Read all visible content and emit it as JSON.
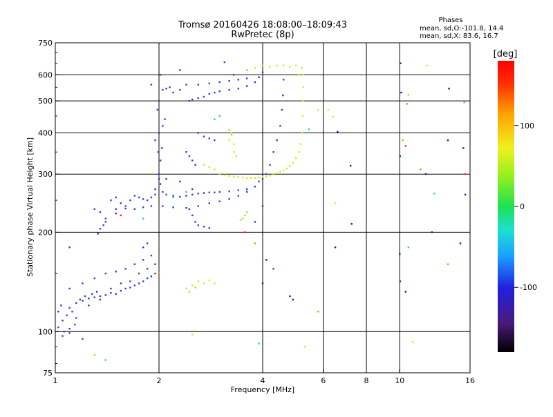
{
  "header": {
    "title_line1": "Tromsø 20160426 18:08:00–18:09:43",
    "title_line2": "RwPretec (8p)",
    "stats_title": "Phases",
    "stats_line1": "mean, sd,O:-101.8, 14.4",
    "stats_line2": "mean, sd,X:  83.6, 16.7"
  },
  "chart_data": {
    "type": "scatter",
    "xlabel": "Frequency [MHz]",
    "ylabel": "Stationary phase Virtual Height [km]",
    "x_scale": "log",
    "y_scale": "log",
    "xlim": [
      1,
      16
    ],
    "ylim": [
      75,
      750
    ],
    "x_ticks": [
      {
        "value": 1,
        "label": "1"
      },
      {
        "value": 2,
        "label": "2"
      },
      {
        "value": 4,
        "label": "4"
      },
      {
        "value": 6,
        "label": "6"
      },
      {
        "value": 8,
        "label": "8"
      },
      {
        "value": 10,
        "label": "10"
      },
      {
        "value": 16,
        "label": "16"
      }
    ],
    "y_ticks": [
      {
        "value": 75,
        "label": "75"
      },
      {
        "value": 100,
        "label": "100"
      },
      {
        "value": 200,
        "label": "200"
      },
      {
        "value": 300,
        "label": "300"
      },
      {
        "value": 400,
        "label": "400"
      },
      {
        "value": 500,
        "label": "500"
      },
      {
        "value": 600,
        "label": "600"
      },
      {
        "value": 750,
        "label": "750"
      }
    ],
    "x_gridlines": [
      2,
      4,
      6,
      8,
      10
    ],
    "y_gridlines": [
      100,
      200,
      300,
      400,
      500,
      600
    ],
    "colorbar": {
      "label": "[deg]",
      "range": [
        -180,
        180
      ],
      "ticks": [
        {
          "value": 100,
          "label": "100"
        },
        {
          "value": 0,
          "label": "0"
        },
        {
          "value": -100,
          "label": "-100"
        }
      ]
    },
    "color_scale": {
      "min": -180,
      "max": 180
    },
    "series": [
      {
        "color": "#2a3be0",
        "points": [
          [
            1.05,
            108
          ],
          [
            1.08,
            112
          ],
          [
            1.1,
            118
          ],
          [
            1.12,
            115
          ],
          [
            1.15,
            122
          ],
          [
            1.18,
            125
          ],
          [
            1.2,
            124
          ],
          [
            1.22,
            128
          ],
          [
            1.25,
            126
          ],
          [
            1.28,
            130
          ],
          [
            1.3,
            127
          ],
          [
            1.32,
            132
          ],
          [
            1.35,
            128
          ],
          [
            1.4,
            129
          ],
          [
            1.45,
            131
          ],
          [
            1.5,
            130
          ],
          [
            1.55,
            133
          ],
          [
            1.6,
            135
          ],
          [
            1.65,
            136
          ],
          [
            1.7,
            138
          ],
          [
            1.75,
            140
          ],
          [
            1.8,
            142
          ],
          [
            1.85,
            145
          ],
          [
            1.9,
            147
          ],
          [
            1.95,
            150
          ],
          [
            1.1,
            135
          ],
          [
            1.2,
            140
          ],
          [
            1.3,
            145
          ],
          [
            1.4,
            150
          ],
          [
            1.5,
            152
          ],
          [
            1.6,
            155
          ],
          [
            1.7,
            160
          ],
          [
            1.8,
            165
          ],
          [
            1.9,
            170
          ],
          [
            1.06,
            100
          ],
          [
            1.1,
            102
          ],
          [
            1.14,
            105
          ],
          [
            1.02,
            115
          ],
          [
            1.04,
            120
          ],
          [
            1.3,
            235
          ],
          [
            1.35,
            230
          ],
          [
            1.4,
            215
          ],
          [
            1.35,
            205
          ],
          [
            1.33,
            198
          ],
          [
            1.38,
            210
          ],
          [
            1.45,
            250
          ],
          [
            1.5,
            255
          ],
          [
            1.55,
            245
          ],
          [
            1.6,
            240
          ],
          [
            1.65,
            250
          ],
          [
            1.7,
            258
          ],
          [
            1.75,
            255
          ],
          [
            1.8,
            252
          ],
          [
            1.85,
            250
          ],
          [
            1.9,
            255
          ],
          [
            1.95,
            260
          ],
          [
            1.5,
            235
          ],
          [
            1.6,
            236
          ],
          [
            1.7,
            235
          ],
          [
            1.8,
            238
          ],
          [
            1.9,
            240
          ],
          [
            1.95,
            270
          ],
          [
            2.0,
            300
          ],
          [
            2.02,
            330
          ],
          [
            2.04,
            360
          ],
          [
            2.0,
            400
          ],
          [
            1.95,
            380
          ],
          [
            2.05,
            420
          ],
          [
            2.08,
            440
          ],
          [
            1.98,
            470
          ],
          [
            1.99,
            350
          ],
          [
            2.0,
            290
          ],
          [
            2.02,
            280
          ],
          [
            2.05,
            265
          ],
          [
            2.1,
            260
          ],
          [
            2.2,
            258
          ],
          [
            2.3,
            256
          ],
          [
            2.4,
            258
          ],
          [
            2.5,
            260
          ],
          [
            2.6,
            262
          ],
          [
            2.7,
            263
          ],
          [
            2.8,
            264
          ],
          [
            2.9,
            264
          ],
          [
            3.0,
            265
          ],
          [
            3.2,
            266
          ],
          [
            3.4,
            268
          ],
          [
            3.6,
            270
          ],
          [
            3.8,
            275
          ],
          [
            3.9,
            285
          ],
          [
            2.05,
            240
          ],
          [
            2.2,
            238
          ],
          [
            2.4,
            237
          ],
          [
            2.6,
            240
          ],
          [
            2.8,
            245
          ],
          [
            3.0,
            248
          ],
          [
            3.2,
            252
          ],
          [
            3.4,
            258
          ],
          [
            3.6,
            265
          ],
          [
            3.8,
            275
          ],
          [
            4.0,
            290
          ],
          [
            4.1,
            300
          ],
          [
            4.2,
            320
          ],
          [
            4.3,
            350
          ],
          [
            4.4,
            380
          ],
          [
            4.5,
            420
          ],
          [
            4.55,
            470
          ],
          [
            4.58,
            520
          ],
          [
            4.6,
            580
          ],
          [
            2.45,
            235
          ],
          [
            2.5,
            225
          ],
          [
            2.55,
            215
          ],
          [
            2.6,
            210
          ],
          [
            2.7,
            208
          ],
          [
            2.8,
            206
          ],
          [
            2.05,
            540
          ],
          [
            2.1,
            545
          ],
          [
            2.15,
            550
          ],
          [
            2.02,
            600
          ],
          [
            2.2,
            530
          ],
          [
            2.3,
            540
          ],
          [
            2.4,
            560
          ],
          [
            2.45,
            500
          ],
          [
            2.5,
            505
          ],
          [
            2.6,
            510
          ],
          [
            2.7,
            515
          ],
          [
            2.8,
            525
          ],
          [
            2.9,
            530
          ],
          [
            3.0,
            535
          ],
          [
            3.2,
            540
          ],
          [
            3.4,
            545
          ],
          [
            3.6,
            555
          ],
          [
            3.8,
            570
          ],
          [
            3.9,
            590
          ],
          [
            4.0,
            610
          ],
          [
            2.6,
            560
          ],
          [
            2.8,
            565
          ],
          [
            3.0,
            570
          ],
          [
            3.2,
            575
          ],
          [
            3.4,
            580
          ],
          [
            3.6,
            585
          ],
          [
            2.4,
            350
          ],
          [
            2.45,
            340
          ],
          [
            2.5,
            330
          ],
          [
            2.55,
            320
          ],
          [
            2.6,
            400
          ],
          [
            2.7,
            390
          ],
          [
            2.8,
            385
          ],
          [
            2.9,
            380
          ],
          [
            1.8,
            180
          ],
          [
            1.85,
            185
          ],
          [
            4.0,
            240
          ],
          [
            3.8,
            215
          ],
          [
            3.1,
            655
          ],
          [
            2.3,
            620
          ]
        ]
      },
      {
        "color": "#5a2ab0",
        "points": [
          [
            1.0,
            100
          ],
          [
            1.02,
            103
          ],
          [
            1.05,
            97
          ],
          [
            1.1,
            99
          ],
          [
            1.2,
            95
          ],
          [
            1.15,
            110
          ],
          [
            1.25,
            120
          ],
          [
            1.35,
            125
          ],
          [
            1.45,
            135
          ],
          [
            1.55,
            140
          ],
          [
            1.65,
            142
          ],
          [
            1.75,
            150
          ],
          [
            1.85,
            155
          ],
          [
            1.95,
            160
          ],
          [
            1.4,
            220
          ],
          [
            1.5,
            228
          ],
          [
            2.1,
            290
          ],
          [
            2.3,
            285
          ],
          [
            2.5,
            270
          ],
          [
            3.3,
            600
          ],
          [
            3.6,
            620
          ],
          [
            1.1,
            180
          ],
          [
            1.9,
            560
          ],
          [
            4.3,
            155
          ]
        ]
      },
      {
        "color": "#d6e81e",
        "points": [
          [
            3.0,
            300
          ],
          [
            3.1,
            298
          ],
          [
            3.2,
            296
          ],
          [
            3.3,
            295
          ],
          [
            3.4,
            294
          ],
          [
            3.5,
            293
          ],
          [
            3.6,
            292
          ],
          [
            3.7,
            292
          ],
          [
            3.8,
            292
          ],
          [
            3.9,
            293
          ],
          [
            4.0,
            294
          ],
          [
            4.1,
            295
          ],
          [
            4.2,
            297
          ],
          [
            4.3,
            299
          ],
          [
            4.4,
            302
          ],
          [
            4.5,
            305
          ],
          [
            4.6,
            308
          ],
          [
            4.7,
            312
          ],
          [
            4.8,
            318
          ],
          [
            4.9,
            325
          ],
          [
            5.0,
            335
          ],
          [
            5.1,
            350
          ],
          [
            5.15,
            370
          ],
          [
            5.2,
            400
          ],
          [
            5.22,
            450
          ],
          [
            5.23,
            500
          ],
          [
            5.25,
            550
          ],
          [
            5.25,
            600
          ],
          [
            5.2,
            630
          ],
          [
            2.7,
            320
          ],
          [
            2.8,
            315
          ],
          [
            2.9,
            310
          ],
          [
            3.2,
            380
          ],
          [
            3.3,
            370
          ],
          [
            3.25,
            400
          ],
          [
            3.3,
            350
          ],
          [
            3.35,
            340
          ],
          [
            3.6,
            620
          ],
          [
            3.8,
            630
          ],
          [
            4.0,
            640
          ],
          [
            4.2,
            635
          ],
          [
            4.4,
            640
          ],
          [
            4.6,
            640
          ],
          [
            4.8,
            635
          ],
          [
            5.0,
            640
          ],
          [
            5.1,
            600
          ],
          [
            2.4,
            135
          ],
          [
            2.5,
            138
          ],
          [
            2.6,
            142
          ],
          [
            2.7,
            140
          ],
          [
            2.8,
            143
          ],
          [
            2.9,
            140
          ],
          [
            2.5,
            98
          ],
          [
            5.3,
            90
          ]
        ]
      },
      {
        "color": "#9ee81e",
        "points": [
          [
            3.5,
            220
          ],
          [
            3.55,
            225
          ],
          [
            3.45,
            218
          ],
          [
            3.6,
            230
          ],
          [
            3.2,
            408
          ],
          [
            3.25,
            395
          ],
          [
            2.45,
            132
          ],
          [
            2.55,
            136
          ],
          [
            10.6,
            522
          ],
          [
            1.3,
            85
          ]
        ]
      },
      {
        "color": "#1ec8e0",
        "points": [
          [
            2.9,
            440
          ],
          [
            3.0,
            450
          ],
          [
            1.8,
            220
          ],
          [
            2.2,
            255
          ],
          [
            2.4,
            265
          ],
          [
            5.45,
            410
          ],
          [
            3.9,
            92
          ]
        ]
      },
      {
        "color": "#ff8a00",
        "points": [
          [
            5.8,
            115
          ],
          [
            10.5,
            490
          ],
          [
            10.2,
            380
          ],
          [
            13.8,
            160
          ],
          [
            11.5,
            310
          ],
          [
            2.0,
            150
          ],
          [
            3.8,
            185
          ]
        ]
      },
      {
        "color": "#ff2020",
        "points": [
          [
            1.55,
            225
          ],
          [
            3.55,
            200
          ],
          [
            10.4,
            365
          ],
          [
            15.5,
            300
          ]
        ]
      },
      {
        "color": "#1a1aa0",
        "points": [
          [
            6.6,
            403
          ],
          [
            7.2,
            318
          ],
          [
            7.25,
            212
          ],
          [
            6.5,
            180
          ],
          [
            10.05,
            650
          ],
          [
            10.1,
            530
          ],
          [
            10.02,
            340
          ],
          [
            10.0,
            172
          ],
          [
            10.03,
            142
          ],
          [
            10.4,
            132
          ],
          [
            12.4,
            200
          ],
          [
            13.9,
            545
          ],
          [
            13.8,
            380
          ],
          [
            15.3,
            360
          ],
          [
            15.5,
            260
          ],
          [
            11.9,
            300
          ],
          [
            15.0,
            185
          ],
          [
            4.9,
            125
          ],
          [
            4.1,
            165
          ],
          [
            4.0,
            140
          ],
          [
            4.8,
            128
          ]
        ]
      },
      {
        "color": "#e0e040",
        "points": [
          [
            6.4,
            448
          ],
          [
            6.5,
            245
          ],
          [
            5.8,
            470
          ],
          [
            10.9,
            93
          ],
          [
            12.0,
            640
          ],
          [
            6.2,
            470
          ]
        ]
      },
      {
        "color": "#30e060",
        "points": [
          [
            15.4,
            495
          ],
          [
            12.6,
            262
          ],
          [
            1.4,
            82
          ],
          [
            10.6,
            180
          ]
        ]
      }
    ]
  }
}
